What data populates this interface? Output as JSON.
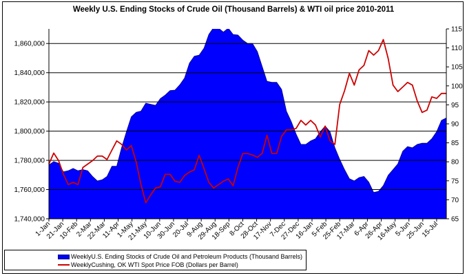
{
  "chart_data": {
    "type": "area+line",
    "title": "Weekly U.S. Ending Stocks of Crude Oil  (Thousand Barrels) & WTI oil price 2010-2011",
    "x": [
      "2010-01-01",
      "2010-01-08",
      "2010-01-15",
      "2010-01-22",
      "2010-01-29",
      "2010-02-05",
      "2010-02-12",
      "2010-02-19",
      "2010-02-26",
      "2010-03-05",
      "2010-03-12",
      "2010-03-19",
      "2010-03-26",
      "2010-04-02",
      "2010-04-09",
      "2010-04-16",
      "2010-04-23",
      "2010-04-30",
      "2010-05-07",
      "2010-05-14",
      "2010-05-21",
      "2010-05-28",
      "2010-06-04",
      "2010-06-11",
      "2010-06-18",
      "2010-06-25",
      "2010-07-02",
      "2010-07-09",
      "2010-07-16",
      "2010-07-23",
      "2010-07-30",
      "2010-08-06",
      "2010-08-13",
      "2010-08-20",
      "2010-08-27",
      "2010-09-03",
      "2010-09-10",
      "2010-09-17",
      "2010-09-24",
      "2010-10-01",
      "2010-10-08",
      "2010-10-15",
      "2010-10-22",
      "2010-10-29",
      "2010-11-05",
      "2010-11-12",
      "2010-11-19",
      "2010-11-26",
      "2010-12-03",
      "2010-12-10",
      "2010-12-17",
      "2010-12-24",
      "2010-12-31",
      "2011-01-07",
      "2011-01-14",
      "2011-01-21",
      "2011-01-28",
      "2011-02-04",
      "2011-02-11",
      "2011-02-18",
      "2011-02-25",
      "2011-03-04",
      "2011-03-11",
      "2011-03-18",
      "2011-03-25",
      "2011-04-01",
      "2011-04-08",
      "2011-04-15",
      "2011-04-22",
      "2011-04-29",
      "2011-05-06",
      "2011-05-13",
      "2011-05-20",
      "2011-05-27",
      "2011-06-03",
      "2011-06-10",
      "2011-06-17",
      "2011-06-24",
      "2011-07-01",
      "2011-07-08",
      "2011-07-15",
      "2011-07-22",
      "2011-07-29"
    ],
    "xtick_labels": [
      "1-Jan",
      "21-Jan",
      "10-Feb",
      "2-Mar",
      "22-Mar",
      "11-Apr",
      "1-May",
      "21-May",
      "10-Jun",
      "30-Jun",
      "20-Jul",
      "9-Aug",
      "29-Aug",
      "18-Sep",
      "8-Oct",
      "28-Oct",
      "17-Nov",
      "7-Dec",
      "27-Dec",
      "16-Jan",
      "5-Feb",
      "25-Feb",
      "17-Mar",
      "6-Apr",
      "26-Apr",
      "16-May",
      "5-Jun",
      "25-Jun",
      "15-Jul"
    ],
    "y_left": {
      "ylim": [
        1740000,
        1870000
      ],
      "ticks": [
        1740000,
        1760000,
        1780000,
        1800000,
        1820000,
        1840000,
        1860000
      ],
      "tick_labels": [
        "1,740,000",
        "1,760,000",
        "1,780,000",
        "1,800,000",
        "1,820,000",
        "1,840,000",
        "1,860,000"
      ],
      "grid": true
    },
    "y_right": {
      "ylim": [
        65,
        115
      ],
      "ticks": [
        65,
        70,
        75,
        80,
        85,
        90,
        95,
        100,
        105,
        110,
        115
      ],
      "tick_labels": [
        "65",
        "70",
        "75",
        "80",
        "85",
        "90",
        "95",
        "100",
        "105",
        "110",
        "115"
      ]
    },
    "legend_placement": "bottom",
    "series": [
      {
        "name": "WeeklyU.S. Ending Stocks of Crude Oil and Petroleum Products  (Thousand Barrels)",
        "type": "area",
        "axis": "left",
        "color": "#0000ff",
        "values": [
          1776800,
          1779200,
          1778000,
          1772100,
          1772900,
          1774500,
          1772900,
          1773700,
          1772900,
          1769000,
          1765900,
          1766700,
          1769000,
          1776000,
          1776000,
          1788600,
          1799600,
          1809800,
          1812900,
          1813700,
          1819200,
          1818400,
          1817600,
          1822300,
          1824700,
          1827800,
          1828100,
          1831700,
          1836400,
          1846600,
          1851300,
          1852000,
          1856800,
          1866200,
          1871000,
          1870500,
          1867800,
          1870500,
          1866200,
          1865800,
          1862300,
          1860000,
          1860000,
          1854500,
          1844300,
          1834100,
          1833400,
          1833400,
          1828600,
          1813700,
          1806600,
          1798000,
          1790900,
          1790900,
          1793300,
          1794800,
          1799600,
          1803500,
          1799600,
          1788600,
          1780700,
          1773700,
          1767400,
          1765900,
          1768200,
          1769000,
          1765100,
          1758000,
          1758800,
          1762700,
          1769800,
          1773700,
          1777600,
          1786200,
          1789400,
          1788600,
          1790900,
          1791700,
          1791700,
          1794800,
          1799600,
          1807400,
          1809000
        ]
      },
      {
        "name": "WeeklyCushing, OK WTI Spot Price FOB  (Dollars per Barrel)",
        "type": "line",
        "axis": "right",
        "color": "#cc0000",
        "values": [
          79.4,
          82.3,
          80.3,
          76.7,
          74.0,
          74.6,
          74.0,
          78.5,
          79.4,
          80.3,
          81.5,
          81.5,
          80.6,
          83.1,
          85.5,
          84.6,
          83.1,
          84.3,
          80.0,
          74.0,
          69.2,
          71.3,
          73.1,
          73.4,
          76.7,
          76.7,
          74.9,
          74.6,
          76.4,
          77.3,
          77.9,
          81.7,
          78.2,
          74.6,
          73.1,
          74.0,
          74.9,
          75.5,
          73.7,
          78.5,
          82.2,
          82.2,
          81.8,
          81.2,
          82.2,
          87.0,
          82.2,
          82.2,
          86.7,
          88.4,
          88.4,
          88.8,
          90.9,
          89.7,
          90.9,
          89.7,
          86.5,
          89.4,
          85.5,
          84.6,
          95.1,
          98.7,
          103.3,
          100.2,
          104.2,
          105.4,
          109.3,
          108.1,
          109.3,
          112.2,
          107.2,
          100.2,
          98.5,
          99.7,
          100.9,
          100.2,
          96.0,
          93.0,
          93.6,
          97.1,
          96.7,
          98.0,
          98.0
        ]
      }
    ]
  }
}
